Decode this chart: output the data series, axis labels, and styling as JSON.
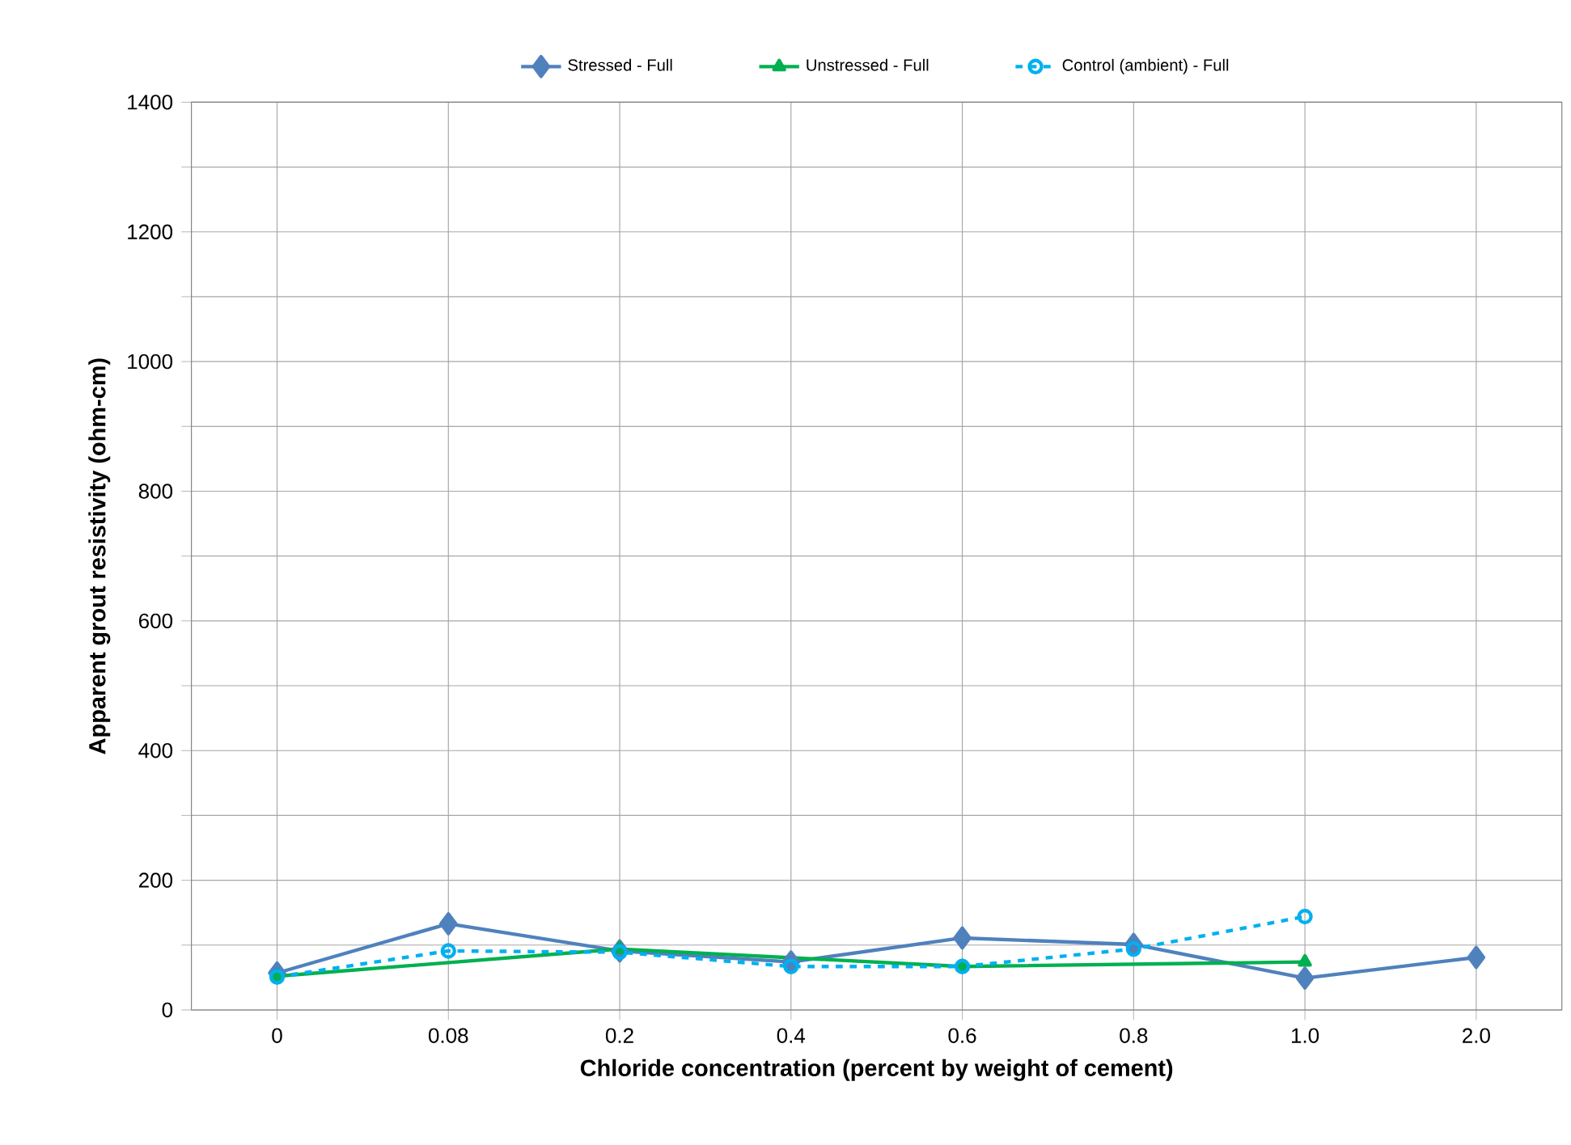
{
  "chart_data": {
    "type": "line",
    "xlabel": "Chloride concentration (percent by weight of cement)",
    "ylabel": "Apparent grout resistivity (ohm-cm)",
    "categories": [
      "0",
      "0.08",
      "0.2",
      "0.4",
      "0.6",
      "0.8",
      "1.0",
      "2.0"
    ],
    "series": [
      {
        "name": "Stressed - Full",
        "color": "#4f81bd",
        "marker": "diamond",
        "line_style": "solid",
        "values": [
          57,
          133,
          91,
          74,
          111,
          101,
          49,
          81
        ]
      },
      {
        "name": "Unstressed - Full",
        "color": "#00b050",
        "marker": "triangle",
        "line_style": "solid",
        "values": [
          52,
          null,
          94,
          null,
          67,
          null,
          74,
          null
        ]
      },
      {
        "name": "Control (ambient) - Full",
        "color": "#00b0f0",
        "marker": "circle",
        "line_style": "dashed",
        "values": [
          51,
          91,
          89,
          67,
          67,
          94,
          144,
          null
        ]
      }
    ],
    "ylim": [
      0,
      1400
    ],
    "yticks": [
      0,
      {
        "value": 100,
        "label": null
      },
      200,
      {
        "value": 300,
        "label": null
      },
      400,
      {
        "value": 500,
        "label": null
      },
      600,
      {
        "value": 700,
        "label": null
      },
      800,
      {
        "value": 900,
        "label": null
      },
      1000,
      {
        "value": 1100,
        "label": null
      },
      1200,
      {
        "value": 1300,
        "label": null
      },
      1400
    ],
    "grid": true,
    "legend": "top"
  }
}
